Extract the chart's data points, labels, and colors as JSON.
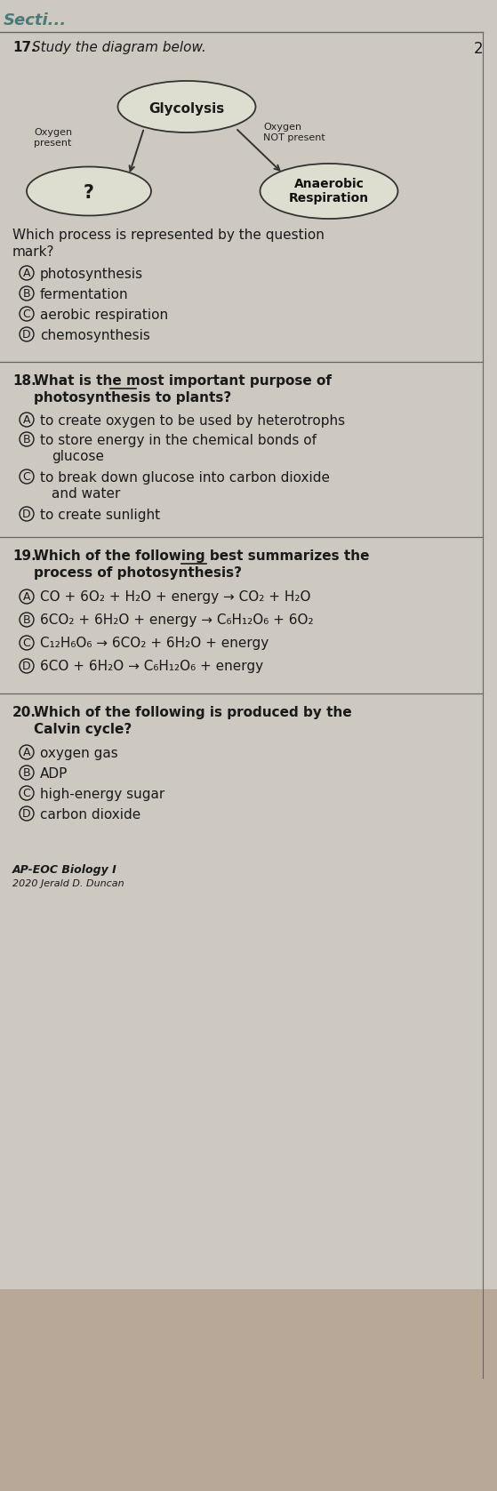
{
  "bg_color": "#cdc8c0",
  "text_color": "#1a1a1a",
  "section_label": "Secti...",
  "q17_study": "Study the diagram below.",
  "diagram": {
    "glycolysis_label": "Glycolysis",
    "question_label": "?",
    "anaerobic_label": "Anaerobic\nRespiration",
    "oxygen_present_label": "Oxygen\npresent",
    "oxygen_not_present_label": "Oxygen\nNOT present"
  },
  "q17_question_line1": "Which process is represented by the question",
  "q17_question_line2": "mark?",
  "q17_choices": [
    [
      "A",
      "photosynthesis"
    ],
    [
      "B",
      "fermentation"
    ],
    [
      "C",
      "aerobic respiration"
    ],
    [
      "D",
      "chemosynthesis"
    ]
  ],
  "q18_line1_pre": "What is the ",
  "q18_line1_underline": "most",
  "q18_line1_post": " important purpose of",
  "q18_line2": "photosynthesis to plants?",
  "q18_choices": [
    [
      "A",
      "to create oxygen to be used by heterotrophs"
    ],
    [
      "B",
      "to store energy in the chemical bonds of\n     glucose"
    ],
    [
      "C",
      "to break down glucose into carbon dioxide\n     and water"
    ],
    [
      "D",
      "to create sunlight"
    ]
  ],
  "q19_line1_pre": "Which of the following ",
  "q19_line1_underline": "best",
  "q19_line1_post": " summarizes the",
  "q19_line2": "process of photosynthesis?",
  "q19_choices": [
    [
      "A",
      "CO + 6O₂ + H₂O + energy → CO₂ + H₂O"
    ],
    [
      "B",
      "6CO₂ + 6H₂O + energy → C₆H₁₂O₆ + 6O₂"
    ],
    [
      "C",
      "C₁₂H₆O₆ → 6CO₂ + 6H₂O + energy"
    ],
    [
      "D",
      "6CO + 6H₂O → C₆H₁₂O₆ + energy"
    ]
  ],
  "q20_line1": "Which of the following is produced by the",
  "q20_line2": "Calvin cycle?",
  "q20_choices": [
    [
      "A",
      "oxygen gas"
    ],
    [
      "B",
      "ADP"
    ],
    [
      "C",
      "high-energy sugar"
    ],
    [
      "D",
      "carbon dioxide"
    ]
  ],
  "footer1": "AP-EOC Biology I",
  "footer2": "2020 Jerald D. Duncan",
  "page_num": "2"
}
